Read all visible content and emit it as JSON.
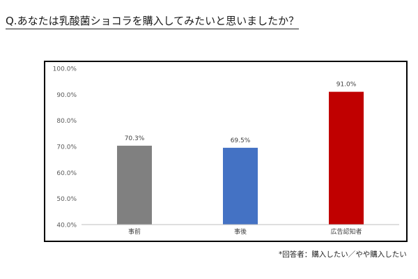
{
  "question": "Q.あなたは乳酸菌ショコラを購入してみたいと思いましたか？",
  "footnote": "*回答者：購入したい／やや購入したい",
  "chart_data": {
    "type": "bar",
    "categories": [
      "事前",
      "事後",
      "広告認知者"
    ],
    "values": [
      70.3,
      69.5,
      91.0
    ],
    "value_labels": [
      "70.3%",
      "69.5%",
      "91.0%"
    ],
    "bar_colors": [
      "#808080",
      "#4472c4",
      "#c00000"
    ],
    "ylim": [
      40,
      100
    ],
    "yticks": [
      40,
      50,
      60,
      70,
      80,
      90,
      100
    ],
    "ytick_labels": [
      "40.0%",
      "50.0%",
      "60.0%",
      "70.0%",
      "80.0%",
      "90.0%",
      "100.0%"
    ],
    "grid": false,
    "legend": "none",
    "title": "",
    "xlabel": "",
    "ylabel": ""
  }
}
